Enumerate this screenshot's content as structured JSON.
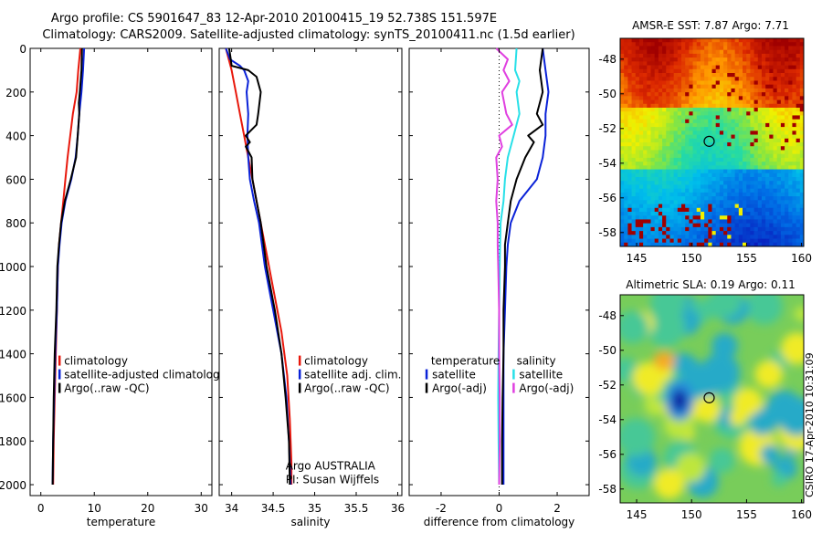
{
  "header": {
    "line1": "Argo profile: CS 5901647_83 12-Apr-2010 20100415_19 52.738S 151.597E",
    "line2": "Climatology: CARS2009. Satellite-adjusted climatology: synTS_20100411.nc (1.5d earlier)"
  },
  "watermark": "CSIRO 17-Apr-2010 10:31:09",
  "colors": {
    "climatology": "#e8180c",
    "satellite": "#0a22d8",
    "argo": "#000000",
    "satellite_salinity": "#28e0e8",
    "argo_salinity": "#e040e0",
    "warm": "#a20000",
    "cool": "#1898d0"
  },
  "chart_data": [
    {
      "id": "temperature",
      "type": "line",
      "xlabel": "temperature",
      "ylabel": "",
      "xlim": [
        -2,
        32
      ],
      "ylim": [
        2050,
        0
      ],
      "xticks": [
        0,
        10,
        20,
        30
      ],
      "yticks": [
        0,
        200,
        400,
        600,
        800,
        1000,
        1200,
        1400,
        1600,
        1800,
        2000
      ],
      "legend": {
        "placement": "bottom-center",
        "entries": [
          "climatology",
          "satellite-adjusted climatolog",
          "Argo(..raw -QC)"
        ]
      },
      "series": [
        {
          "name": "climatology",
          "color_key": "climatology",
          "points": [
            [
              7.4,
              0
            ],
            [
              7.0,
              100
            ],
            [
              6.7,
              200
            ],
            [
              6.0,
              300
            ],
            [
              5.5,
              400
            ],
            [
              5.0,
              500
            ],
            [
              4.6,
              600
            ],
            [
              4.2,
              700
            ],
            [
              3.8,
              800
            ],
            [
              3.4,
              900
            ],
            [
              3.2,
              1000
            ],
            [
              3.0,
              1200
            ],
            [
              2.8,
              1400
            ],
            [
              2.6,
              1600
            ],
            [
              2.4,
              1800
            ],
            [
              2.3,
              2000
            ]
          ]
        },
        {
          "name": "satellite-adjusted climatolog",
          "color_key": "satellite",
          "points": [
            [
              8.1,
              0
            ],
            [
              7.9,
              100
            ],
            [
              7.6,
              200
            ],
            [
              7.2,
              300
            ],
            [
              6.9,
              400
            ],
            [
              6.5,
              500
            ],
            [
              5.7,
              600
            ],
            [
              4.6,
              700
            ],
            [
              3.9,
              800
            ],
            [
              3.5,
              900
            ],
            [
              3.2,
              1000
            ],
            [
              3.0,
              1200
            ],
            [
              2.7,
              1400
            ],
            [
              2.5,
              1600
            ],
            [
              2.3,
              1800
            ],
            [
              2.2,
              2000
            ]
          ]
        },
        {
          "name": "Argo(..raw -QC)",
          "color_key": "argo",
          "points": [
            [
              7.7,
              0
            ],
            [
              7.6,
              100
            ],
            [
              7.3,
              200
            ],
            [
              7.1,
              250
            ],
            [
              7.2,
              300
            ],
            [
              6.9,
              400
            ],
            [
              6.6,
              500
            ],
            [
              5.6,
              600
            ],
            [
              4.5,
              700
            ],
            [
              3.8,
              800
            ],
            [
              3.4,
              900
            ],
            [
              3.1,
              1000
            ],
            [
              2.9,
              1200
            ],
            [
              2.6,
              1400
            ],
            [
              2.4,
              1600
            ],
            [
              2.3,
              1800
            ],
            [
              2.2,
              2000
            ]
          ]
        }
      ]
    },
    {
      "id": "salinity",
      "type": "line",
      "xlabel": "salinity",
      "ylabel": "",
      "xlim": [
        33.85,
        36.05
      ],
      "ylim": [
        2050,
        0
      ],
      "xticks": [
        34,
        34.5,
        35,
        35.5,
        36
      ],
      "xticklabels": [
        "34",
        "34.5",
        "35",
        "35.5",
        "36"
      ],
      "yticks": [
        0,
        200,
        400,
        600,
        800,
        1000,
        1200,
        1400,
        1600,
        1800,
        2000
      ],
      "legend": {
        "placement": "bottom-center",
        "entries": [
          "climatology",
          "satellite adj. clim.",
          "Argo(..raw -QC)"
        ]
      },
      "annotation": [
        "Argo AUSTRALIA",
        "PI: Susan Wijffels"
      ],
      "series": [
        {
          "name": "climatology",
          "color_key": "climatology",
          "points": [
            [
              33.93,
              0
            ],
            [
              34.0,
              100
            ],
            [
              34.05,
              200
            ],
            [
              34.1,
              300
            ],
            [
              34.15,
              400
            ],
            [
              34.2,
              500
            ],
            [
              34.25,
              600
            ],
            [
              34.3,
              700
            ],
            [
              34.4,
              900
            ],
            [
              34.5,
              1100
            ],
            [
              34.6,
              1300
            ],
            [
              34.67,
              1500
            ],
            [
              34.7,
              1700
            ],
            [
              34.72,
              1900
            ],
            [
              34.72,
              2000
            ]
          ]
        },
        {
          "name": "satellite adj. clim.",
          "color_key": "satellite",
          "points": [
            [
              33.93,
              0
            ],
            [
              33.98,
              50
            ],
            [
              34.1,
              80
            ],
            [
              34.15,
              100
            ],
            [
              34.2,
              150
            ],
            [
              34.18,
              200
            ],
            [
              34.2,
              300
            ],
            [
              34.19,
              400
            ],
            [
              34.2,
              500
            ],
            [
              34.22,
              600
            ],
            [
              34.27,
              700
            ],
            [
              34.33,
              800
            ],
            [
              34.4,
              1000
            ],
            [
              34.5,
              1200
            ],
            [
              34.6,
              1400
            ],
            [
              34.66,
              1600
            ],
            [
              34.69,
              1800
            ],
            [
              34.71,
              2000
            ]
          ]
        },
        {
          "name": "Argo(..raw -QC)",
          "color_key": "argo",
          "points": [
            [
              33.97,
              0
            ],
            [
              33.99,
              50
            ],
            [
              34.0,
              80
            ],
            [
              34.2,
              100
            ],
            [
              34.3,
              130
            ],
            [
              34.35,
              200
            ],
            [
              34.32,
              300
            ],
            [
              34.3,
              350
            ],
            [
              34.17,
              400
            ],
            [
              34.22,
              430
            ],
            [
              34.17,
              450
            ],
            [
              34.24,
              500
            ],
            [
              34.25,
              600
            ],
            [
              34.3,
              700
            ],
            [
              34.35,
              800
            ],
            [
              34.42,
              1000
            ],
            [
              34.52,
              1200
            ],
            [
              34.6,
              1400
            ],
            [
              34.65,
              1600
            ],
            [
              34.69,
              1800
            ],
            [
              34.7,
              2000
            ]
          ]
        }
      ]
    },
    {
      "id": "difference",
      "type": "line",
      "xlabel": "difference from climatology",
      "ylabel": "",
      "xlim": [
        -3.1,
        3.1
      ],
      "ylim": [
        2050,
        0
      ],
      "xticks": [
        -2,
        0,
        2
      ],
      "yticks": [
        0,
        200,
        400,
        600,
        800,
        1000,
        1200,
        1400,
        1600,
        1800,
        2000
      ],
      "legend": {
        "placement": "bottom-center",
        "temperature_title": "temperature",
        "salinity_title": "salinity",
        "entries": [
          "satellite",
          "Argo(-adj)",
          "satellite",
          "Argo(-adj)"
        ]
      },
      "series": [
        {
          "name": "satellite",
          "group": "temperature",
          "color_key": "satellite",
          "points": [
            [
              1.5,
              0
            ],
            [
              1.6,
              100
            ],
            [
              1.7,
              200
            ],
            [
              1.6,
              300
            ],
            [
              1.6,
              400
            ],
            [
              1.5,
              500
            ],
            [
              1.3,
              600
            ],
            [
              0.7,
              700
            ],
            [
              0.4,
              800
            ],
            [
              0.3,
              900
            ],
            [
              0.25,
              1000
            ],
            [
              0.2,
              1200
            ],
            [
              0.15,
              1400
            ],
            [
              0.15,
              1600
            ],
            [
              0.15,
              1800
            ],
            [
              0.15,
              2000
            ]
          ]
        },
        {
          "name": "Argo(-adj)",
          "group": "temperature",
          "color_key": "argo",
          "points": [
            [
              1.5,
              0
            ],
            [
              1.4,
              100
            ],
            [
              1.5,
              200
            ],
            [
              1.3,
              300
            ],
            [
              1.5,
              350
            ],
            [
              1.0,
              400
            ],
            [
              1.2,
              430
            ],
            [
              0.9,
              500
            ],
            [
              0.6,
              600
            ],
            [
              0.4,
              700
            ],
            [
              0.3,
              800
            ],
            [
              0.2,
              900
            ],
            [
              0.2,
              1000
            ],
            [
              0.15,
              1200
            ],
            [
              0.15,
              1400
            ],
            [
              0.12,
              1600
            ],
            [
              0.1,
              1800
            ],
            [
              0.1,
              2000
            ]
          ]
        },
        {
          "name": "satellite",
          "group": "salinity",
          "color_key": "satellite_salinity",
          "points": [
            [
              0.6,
              0
            ],
            [
              0.55,
              100
            ],
            [
              0.7,
              150
            ],
            [
              0.6,
              200
            ],
            [
              0.7,
              300
            ],
            [
              0.5,
              400
            ],
            [
              0.3,
              500
            ],
            [
              0.2,
              600
            ],
            [
              0.15,
              700
            ],
            [
              0.05,
              800
            ],
            [
              0.02,
              1000
            ],
            [
              0.0,
              1200
            ],
            [
              -0.02,
              1400
            ],
            [
              -0.03,
              1600
            ],
            [
              -0.02,
              1800
            ],
            [
              0.0,
              2000
            ]
          ]
        },
        {
          "name": "Argo(-adj)",
          "group": "salinity",
          "color_key": "argo_salinity",
          "points": [
            [
              -0.1,
              0
            ],
            [
              0.3,
              50
            ],
            [
              0.15,
              100
            ],
            [
              0.35,
              150
            ],
            [
              0.1,
              200
            ],
            [
              0.25,
              300
            ],
            [
              0.45,
              350
            ],
            [
              0.0,
              400
            ],
            [
              0.1,
              450
            ],
            [
              -0.1,
              500
            ],
            [
              -0.05,
              600
            ],
            [
              -0.1,
              700
            ],
            [
              -0.05,
              800
            ],
            [
              -0.05,
              900
            ],
            [
              -0.03,
              1000
            ],
            [
              0.0,
              1200
            ],
            [
              0.0,
              1400
            ],
            [
              0.02,
              1600
            ],
            [
              0.02,
              1800
            ],
            [
              0.0,
              2000
            ]
          ]
        }
      ]
    },
    {
      "id": "sst_map",
      "type": "heatmap",
      "title": "AMSR-E SST: 7.87 Argo: 7.71",
      "xlim": [
        143.5,
        160.2
      ],
      "ylim": [
        -58.8,
        -46.8
      ],
      "xticks": [
        145,
        150,
        155,
        160
      ],
      "yticks": [
        -48,
        -50,
        -52,
        -54,
        -56,
        -58
      ],
      "marker": {
        "lon": 151.6,
        "lat": -52.74
      }
    },
    {
      "id": "sla_map",
      "type": "heatmap",
      "title": "Altimetric SLA: 0.19 Argo: 0.11",
      "xlim": [
        143.5,
        160.2
      ],
      "ylim": [
        -58.8,
        -46.8
      ],
      "xticks": [
        145,
        150,
        155,
        160
      ],
      "yticks": [
        -48,
        -50,
        -52,
        -54,
        -56,
        -58
      ],
      "marker": {
        "lon": 151.6,
        "lat": -52.74
      }
    }
  ]
}
